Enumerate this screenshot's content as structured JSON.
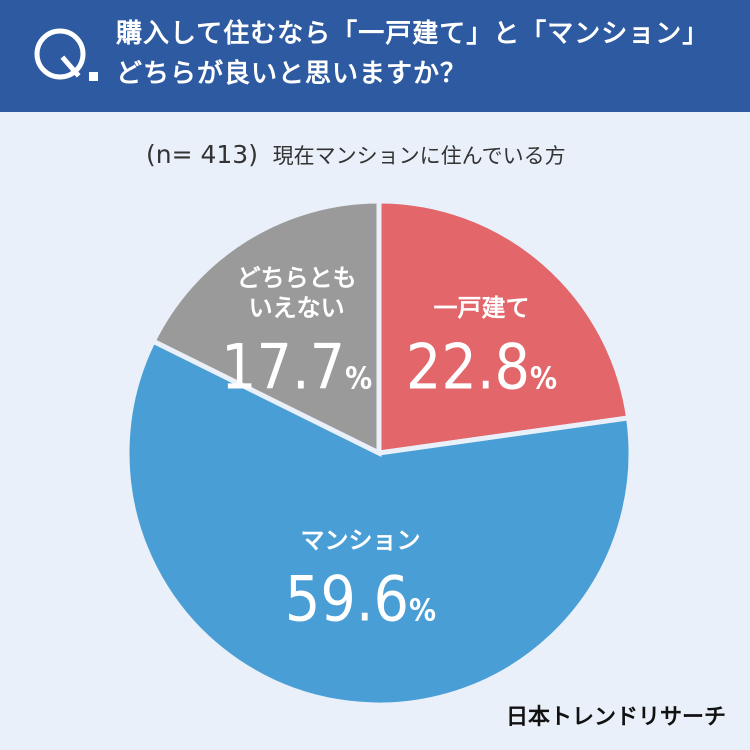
{
  "header": {
    "question_line1": "購入して住むなら「一戸建て」と「マンション」",
    "question_line2": "どちらが良いと思いますか？"
  },
  "sample": {
    "n_label": "(n= 413)",
    "population": "現在マンションに住んでいる方"
  },
  "brand": "日本トレンドリサーチ",
  "colors": {
    "header": "#2d5aa0",
    "background": "#e9f0f9",
    "detached": "#e2666a",
    "mansion": "#4a9ed6",
    "neither": "#9a9a9a"
  },
  "chart_data": {
    "type": "pie",
    "categories": [
      "一戸建て",
      "マンション",
      "どちらともいえない"
    ],
    "values": [
      22.8,
      59.6,
      17.7
    ],
    "unit": "%",
    "label_lines": [
      [
        "一戸建て"
      ],
      [
        "マンション"
      ],
      [
        "どちらとも",
        "いえない"
      ]
    ],
    "colors": [
      "#e2666a",
      "#4a9ed6",
      "#9a9a9a"
    ]
  }
}
